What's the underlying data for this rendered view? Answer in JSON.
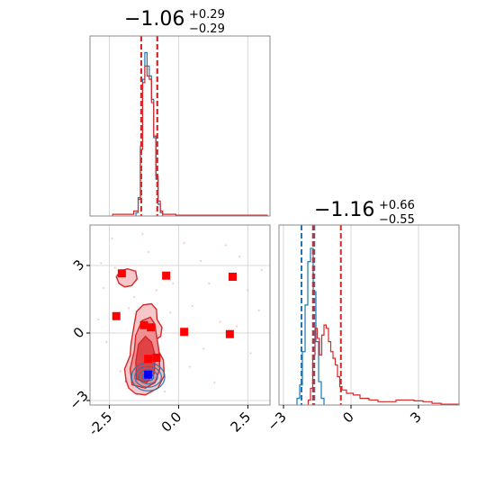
{
  "colors": {
    "blue": "#1f77b4",
    "red": "#d62728",
    "red_fill_light": "#f6c7c8",
    "red_fill_mid": "#ee8f92",
    "red_fill_dark": "#e04346",
    "marker_red": "#ff0000",
    "marker_blue": "#0000ff",
    "grid": "#d8d8d8",
    "frame": "#888888"
  },
  "chart_data": [
    {
      "panel": "marginal-x",
      "type": "histogram",
      "title": {
        "value": "−1.06",
        "sup": "+0.29",
        "sub": "−0.29"
      },
      "xlim": [
        -3.2,
        3.3
      ],
      "ylim": [
        0,
        1.08
      ],
      "show_y_ticks": false,
      "grid": true,
      "x_grid": [
        -2.5,
        0.0,
        2.5
      ],
      "series": [
        {
          "color": "blue",
          "bins_x": [
            -1.54,
            -1.46,
            -1.38,
            -1.3,
            -1.22,
            -1.14,
            -1.06,
            -0.98,
            -0.9,
            -0.82,
            -0.74,
            -0.66,
            -0.58
          ],
          "heights": [
            0.02,
            0.1,
            0.42,
            0.82,
            0.98,
            0.9,
            0.84,
            0.7,
            0.47,
            0.22,
            0.07,
            0.02
          ]
        },
        {
          "color": "red",
          "bins_x": [
            -2.38,
            -2.1,
            -1.82,
            -1.62,
            -1.46,
            -1.38,
            -1.3,
            -1.22,
            -1.14,
            -1.06,
            -0.98,
            -0.9,
            -0.82,
            -0.74,
            -0.66,
            -0.58,
            -0.38,
            -0.1,
            0.3,
            0.8,
            1.4,
            2.0,
            2.6,
            3.2
          ],
          "heights": [
            0.01,
            0.01,
            0.01,
            0.03,
            0.11,
            0.4,
            0.8,
            0.9,
            0.84,
            0.82,
            0.68,
            0.48,
            0.24,
            0.09,
            0.03,
            0.01,
            0.01,
            0.005,
            0.005,
            0.005,
            0.005,
            0.005,
            0.005
          ]
        }
      ],
      "vlines": [
        {
          "x": -1.35,
          "color": "blue"
        },
        {
          "x": -0.77,
          "color": "blue"
        },
        {
          "x": -1.35,
          "color": "red"
        },
        {
          "x": -0.77,
          "color": "red"
        }
      ]
    },
    {
      "panel": "joint",
      "type": "scatter",
      "xlim": [
        -3.2,
        3.3
      ],
      "ylim": [
        -3.2,
        4.8
      ],
      "x_ticks": [
        "-2.5",
        "0.0",
        "2.5"
      ],
      "x_tick_values": [
        -2.5,
        0.0,
        2.5
      ],
      "y_ticks": [
        "−3",
        "0",
        "3"
      ],
      "y_tick_values": [
        -3,
        0,
        3
      ],
      "grid": true,
      "x_grid": [
        -2.5,
        0.0,
        2.5
      ],
      "y_grid": [
        3,
        0,
        -3
      ],
      "red_squares": [
        [
          -2.05,
          2.65
        ],
        [
          -0.45,
          2.55
        ],
        [
          1.95,
          2.5
        ],
        [
          -2.25,
          0.75
        ],
        [
          -1.25,
          0.35
        ],
        [
          -1.0,
          0.25
        ],
        [
          0.2,
          0.05
        ],
        [
          1.85,
          -0.05
        ],
        [
          -1.1,
          -1.15
        ],
        [
          -0.8,
          -1.1
        ]
      ],
      "blue_squares": [
        [
          -1.1,
          -1.85
        ]
      ],
      "scatter_blue": [
        [
          -1.6,
          -2.2
        ],
        [
          -0.9,
          -2.5
        ],
        [
          -1.4,
          -1.55
        ],
        [
          -0.7,
          -2.05
        ],
        [
          -1.9,
          -2.15
        ],
        [
          -1.0,
          -2.6
        ],
        [
          -0.6,
          -1.7
        ],
        [
          -1.5,
          -2.7
        ],
        [
          -1.75,
          -1.9
        ]
      ],
      "scatter_red": [
        [
          -2.4,
          4.2
        ],
        [
          -1.1,
          3.6
        ],
        [
          0.8,
          3.2
        ],
        [
          2.2,
          3.4
        ],
        [
          -0.2,
          2.2
        ],
        [
          2.5,
          1.9
        ],
        [
          -2.7,
          2.0
        ],
        [
          1.1,
          2.2
        ],
        [
          -1.6,
          1.6
        ],
        [
          0.5,
          1.2
        ],
        [
          2.9,
          1.0
        ],
        [
          -2.9,
          0.6
        ],
        [
          1.5,
          0.5
        ],
        [
          -0.3,
          0.9
        ],
        [
          -1.8,
          1.1
        ],
        [
          0.9,
          -0.7
        ],
        [
          -2.6,
          -0.4
        ],
        [
          2.6,
          -0.9
        ],
        [
          -0.5,
          -2.6
        ],
        [
          1.3,
          -2.2
        ],
        [
          -2.1,
          -1.7
        ],
        [
          0.4,
          -1.5
        ],
        [
          -2.8,
          3.1
        ],
        [
          3.0,
          2.8
        ],
        [
          -1.3,
          4.4
        ],
        [
          0.2,
          4.0
        ],
        [
          1.7,
          3.9
        ],
        [
          -0.8,
          1.9
        ],
        [
          2.1,
          0.3
        ],
        [
          -2.3,
          2.9
        ]
      ],
      "contours_red": [
        {
          "level": "outer",
          "fill": "red_fill_light",
          "main": [
            [
              -1.8,
              -2.45
            ],
            [
              -1.9,
              -2.1
            ],
            [
              -1.95,
              -1.6
            ],
            [
              -1.75,
              -1.0
            ],
            [
              -1.72,
              -0.5
            ],
            [
              -1.6,
              0.4
            ],
            [
              -1.52,
              0.95
            ],
            [
              -1.28,
              1.25
            ],
            [
              -0.98,
              1.3
            ],
            [
              -0.8,
              1.05
            ],
            [
              -0.78,
              0.6
            ],
            [
              -0.6,
              0.25
            ],
            [
              -0.65,
              -0.15
            ],
            [
              -0.88,
              -0.35
            ],
            [
              -0.75,
              -0.75
            ],
            [
              -0.55,
              -1.2
            ],
            [
              -0.52,
              -1.9
            ],
            [
              -0.75,
              -2.45
            ],
            [
              -1.2,
              -2.75
            ],
            [
              -1.55,
              -2.7
            ]
          ],
          "blob": [
            [
              -2.15,
              2.2
            ],
            [
              -2.25,
              2.5
            ],
            [
              -2.1,
              2.75
            ],
            [
              -1.85,
              2.85
            ],
            [
              -1.55,
              2.75
            ],
            [
              -1.5,
              2.4
            ],
            [
              -1.7,
              2.1
            ],
            [
              -1.95,
              2.05
            ]
          ]
        },
        {
          "level": "middle",
          "fill": "red_fill_mid",
          "main": [
            [
              -1.68,
              -2.3
            ],
            [
              -1.75,
              -1.6
            ],
            [
              -1.6,
              -0.8
            ],
            [
              -1.55,
              -0.1
            ],
            [
              -1.32,
              0.55
            ],
            [
              -1.02,
              0.7
            ],
            [
              -0.86,
              0.4
            ],
            [
              -0.8,
              -0.1
            ],
            [
              -0.72,
              -0.7
            ],
            [
              -0.68,
              -1.6
            ],
            [
              -0.85,
              -2.2
            ],
            [
              -1.2,
              -2.45
            ]
          ]
        },
        {
          "level": "inner",
          "fill": "red_fill_dark",
          "main": [
            [
              -1.52,
              -2.05
            ],
            [
              -1.55,
              -1.3
            ],
            [
              -1.45,
              -0.5
            ],
            [
              -1.2,
              -0.15
            ],
            [
              -0.98,
              -0.4
            ],
            [
              -0.85,
              -1.0
            ],
            [
              -0.88,
              -1.8
            ],
            [
              -1.15,
              -2.2
            ]
          ]
        }
      ],
      "contours_blue": [
        {
          "cx": -1.1,
          "cy": -1.95,
          "rx": 0.6,
          "ry": 0.62
        },
        {
          "cx": -1.1,
          "cy": -1.95,
          "rx": 0.48,
          "ry": 0.46
        },
        {
          "cx": -1.1,
          "cy": -1.95,
          "rx": 0.34,
          "ry": 0.31
        },
        {
          "cx": -1.1,
          "cy": -1.95,
          "rx": 0.2,
          "ry": 0.18
        }
      ]
    },
    {
      "panel": "marginal-y",
      "type": "histogram",
      "title": {
        "value": "−1.16",
        "sup": "+0.66",
        "sub": "−0.55"
      },
      "xlim": [
        -3.2,
        4.8
      ],
      "ylim": [
        0,
        1.08
      ],
      "x_ticks": [
        "−3",
        "0",
        "3"
      ],
      "x_tick_values": [
        -3,
        0,
        3
      ],
      "show_y_ticks": false,
      "grid": true,
      "x_grid": [
        -3,
        0,
        3
      ],
      "series": [
        {
          "color": "blue",
          "bins_x": [
            -2.4,
            -2.28,
            -2.16,
            -2.04,
            -1.92,
            -1.8,
            -1.68,
            -1.56,
            -1.44,
            -1.32,
            -1.2
          ],
          "heights": [
            0.04,
            0.12,
            0.32,
            0.6,
            0.86,
            0.94,
            0.68,
            0.38,
            0.14,
            0.04
          ]
        },
        {
          "color": "red",
          "bins_x": [
            -1.9,
            -1.8,
            -1.7,
            -1.6,
            -1.5,
            -1.4,
            -1.3,
            -1.2,
            -1.1,
            -1.0,
            -0.9,
            -0.8,
            -0.7,
            -0.6,
            -0.5,
            -0.4,
            -0.2,
            0.1,
            0.4,
            0.8,
            1.2,
            1.6,
            2.0,
            2.4,
            2.8,
            3.2,
            3.6,
            4.0,
            4.4,
            4.8
          ],
          "heights": [
            0.03,
            0.1,
            0.3,
            0.46,
            0.4,
            0.3,
            0.42,
            0.48,
            0.46,
            0.38,
            0.32,
            0.28,
            0.24,
            0.17,
            0.11,
            0.09,
            0.07,
            0.06,
            0.04,
            0.03,
            0.02,
            0.02,
            0.03,
            0.03,
            0.025,
            0.02,
            0.01,
            0.005,
            0.005
          ]
        }
      ],
      "vlines": [
        {
          "x": -2.2,
          "color": "blue"
        },
        {
          "x": -1.63,
          "color": "blue"
        },
        {
          "x": -1.69,
          "color": "red"
        },
        {
          "x": -0.45,
          "color": "red"
        }
      ]
    }
  ]
}
